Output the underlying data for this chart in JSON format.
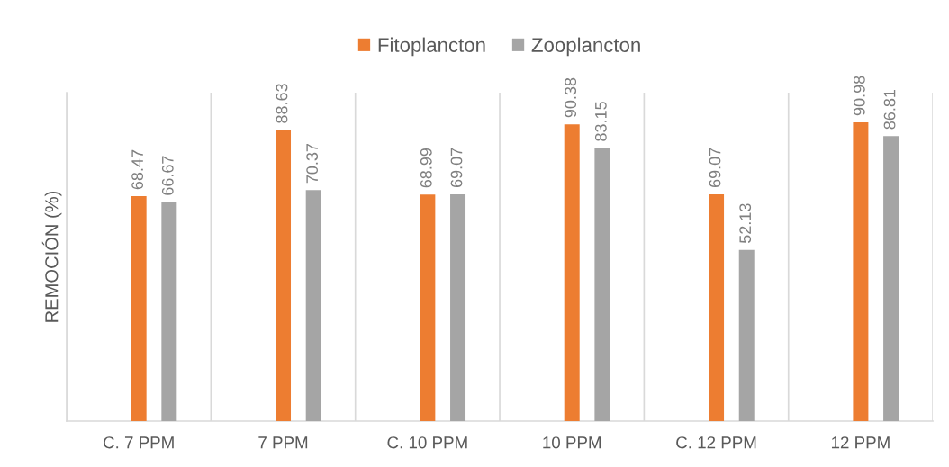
{
  "chart_data": {
    "type": "bar",
    "ylabel": "REMOCIÓN (%)",
    "categories": [
      "C. 7 PPM",
      "7 PPM",
      "C. 10 PPM",
      "10 PPM",
      "C. 12 PPM",
      "12 PPM"
    ],
    "series": [
      {
        "name": "Fitoplancton",
        "color": "#ed7d31",
        "values": [
          68.47,
          88.63,
          68.99,
          90.38,
          69.07,
          90.98
        ]
      },
      {
        "name": "Zooplancton",
        "color": "#a5a5a5",
        "values": [
          66.67,
          70.37,
          69.07,
          83.15,
          52.13,
          86.81
        ]
      }
    ],
    "ylim": [
      0,
      100
    ],
    "data_labels": true,
    "grid": "x",
    "legend": "top",
    "tick_labels": "x"
  }
}
